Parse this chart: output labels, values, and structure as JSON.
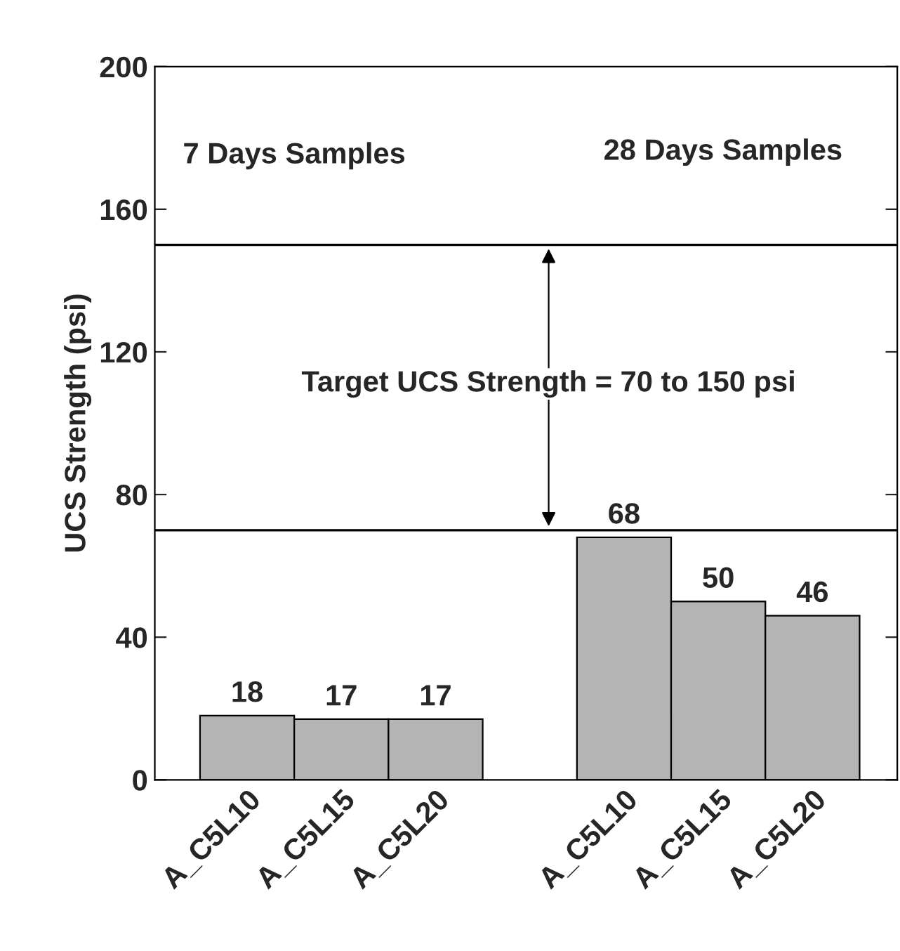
{
  "chart_data": {
    "type": "bar",
    "ylabel": "UCS Strength (psi)",
    "categories": [
      "A_C5L10",
      "A_C5L15",
      "A_C5L20",
      null,
      "A_C5L10",
      "A_C5L15",
      "A_C5L20"
    ],
    "values": [
      18,
      17,
      17,
      null,
      68,
      50,
      46
    ],
    "color": "#b4b4b4",
    "ylim": [
      0,
      200
    ],
    "yticks": [
      0,
      40,
      80,
      120,
      160,
      200
    ],
    "data_labels": true,
    "grid": false,
    "ref_lines": [
      {
        "axis": "y",
        "value": 70,
        "color": "#000000"
      },
      {
        "axis": "y",
        "value": 150,
        "color": "#000000"
      }
    ],
    "annotations": [
      "7 Days Samples",
      "28 Days Samples",
      "Target UCS Strength = 70 to 150 psi"
    ]
  }
}
